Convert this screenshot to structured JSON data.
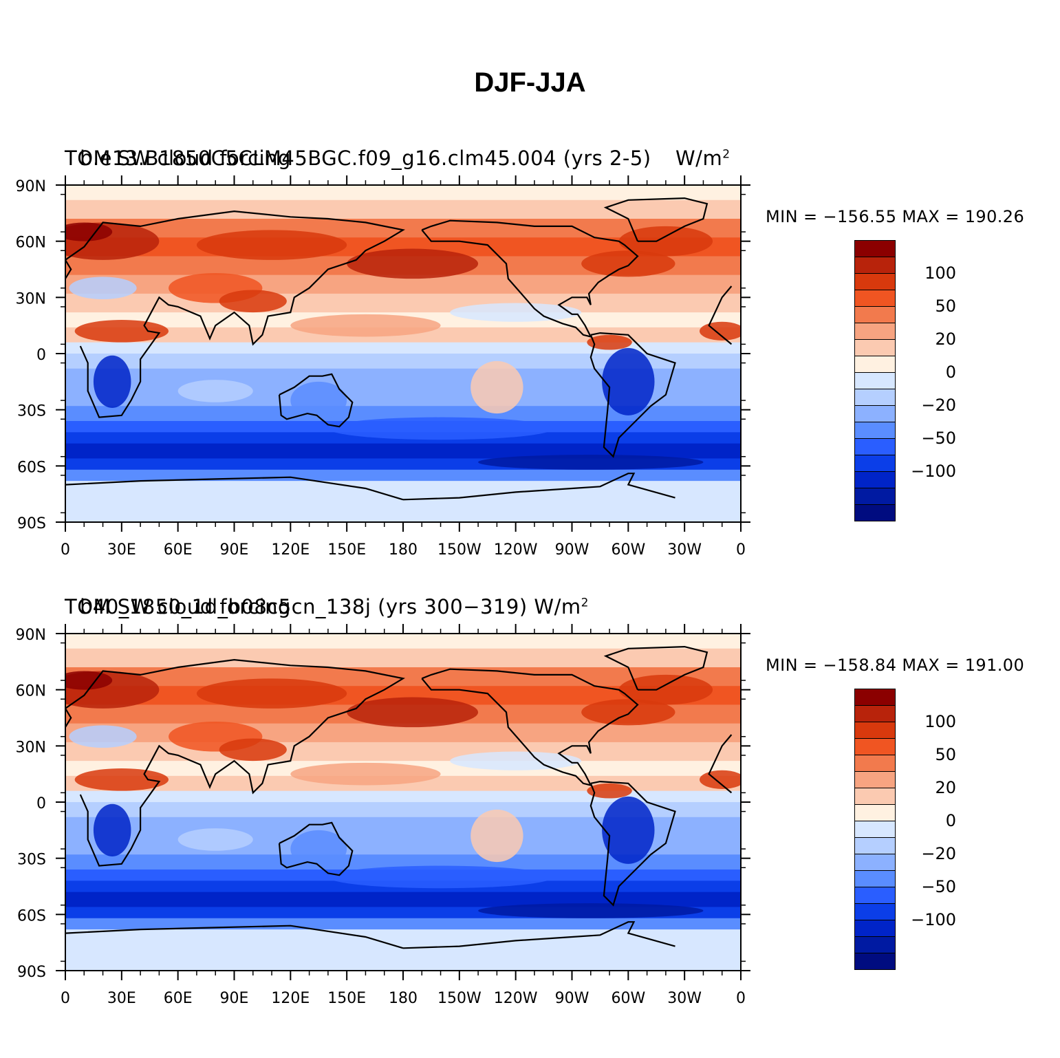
{
  "title": "DJF-JJA",
  "panels": [
    {
      "caption_left": "TOM SW cloud forcing",
      "caption_center": "b.e13.B1850C5CLM45BGC.f09_g16.clm45.004 (yrs 2-5)",
      "caption_right": "W/m",
      "caption_right_sup": "2",
      "minmax": "MIN = −156.55  MAX = 190.26"
    },
    {
      "caption_left": "TOM SW cloud forcing",
      "caption_center": "b40_1850_1d_b08c5cn_138j (yrs 300−319) W/m",
      "caption_right": "",
      "caption_right_sup": "2",
      "minmax": "MIN = −158.84  MAX = 191.00"
    }
  ],
  "lat_ticks": [
    "90N",
    "60N",
    "30N",
    "0",
    "30S",
    "60S",
    "90S"
  ],
  "lon_ticks": [
    "0",
    "30E",
    "60E",
    "90E",
    "120E",
    "150E",
    "180",
    "150W",
    "120W",
    "90W",
    "60W",
    "30W",
    "0"
  ],
  "colorbar": {
    "colors": [
      "#8b0000",
      "#b8230b",
      "#d8390d",
      "#f05522",
      "#f27a4d",
      "#f7a481",
      "#fbcab1",
      "#fff1e1",
      "#d7e7ff",
      "#b5cfff",
      "#8cb1ff",
      "#5a8dff",
      "#2a5eff",
      "#0b3ee8",
      "#0024c8",
      "#001aa2",
      "#000c80"
    ],
    "labels": [
      {
        "text": "100",
        "after_cell": 2
      },
      {
        "text": "50",
        "after_cell": 4
      },
      {
        "text": "20",
        "after_cell": 6
      },
      {
        "text": "0",
        "after_cell": 8
      },
      {
        "text": "−20",
        "after_cell": 10
      },
      {
        "text": "−50",
        "after_cell": 12
      },
      {
        "text": "−100",
        "after_cell": 14
      }
    ]
  }
}
